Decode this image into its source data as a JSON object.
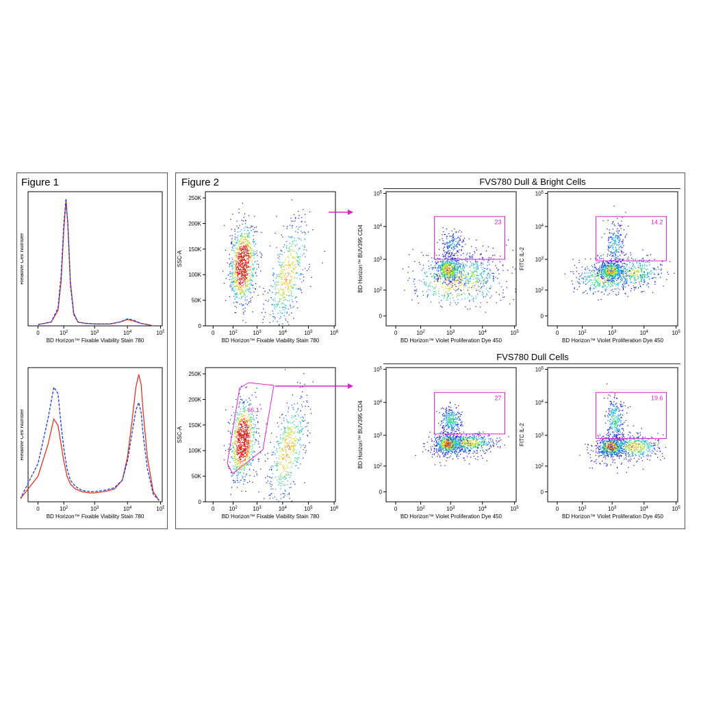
{
  "figure1": {
    "title": "Figure 1"
  },
  "figure2": {
    "title": "Figure 2",
    "group_top": "FVS780 Dull & Bright Cells",
    "group_bottom": "FVS780 Dull Cells"
  },
  "colors": {
    "solid": "#e8301a",
    "dashed": "#1d3ad8",
    "gate": "#e020d0",
    "arrow": "#e020d0"
  },
  "chart_data": [
    {
      "id": "hist_top",
      "type": "line",
      "xlabel": "BD Horizon™ Fixable Viability Stain 780",
      "ylabel": "Relative Cell Number",
      "x_ticks": [
        "0",
        "10^2",
        "10^3",
        "10^4",
        "10^5"
      ],
      "x_scale": "biexponential",
      "series": [
        {
          "style": "solid",
          "color": "#e8301a",
          "x": [
            0,
            30,
            60,
            80,
            100,
            120,
            140,
            170,
            220,
            300,
            500,
            1000,
            3000,
            6000,
            10000,
            15000,
            25000,
            40000,
            60000
          ],
          "y": [
            0.01,
            0.03,
            0.12,
            0.35,
            0.75,
            0.98,
            0.8,
            0.35,
            0.1,
            0.03,
            0.02,
            0.015,
            0.015,
            0.03,
            0.05,
            0.04,
            0.02,
            0.01,
            0.0
          ]
        },
        {
          "style": "dashed",
          "color": "#1d3ad8",
          "x": [
            0,
            30,
            60,
            80,
            100,
            120,
            140,
            170,
            220,
            300,
            500,
            1000,
            3000,
            6000,
            10000,
            15000,
            25000,
            40000,
            60000
          ],
          "y": [
            0.01,
            0.03,
            0.14,
            0.4,
            0.8,
            1.0,
            0.78,
            0.32,
            0.09,
            0.03,
            0.02,
            0.015,
            0.015,
            0.03,
            0.055,
            0.045,
            0.02,
            0.01,
            0.0
          ]
        }
      ]
    },
    {
      "id": "hist_bottom",
      "type": "line",
      "xlabel": "BD Horizon™ Fixable Viability Stain 780",
      "ylabel": "Relative Cell Number",
      "x_ticks": [
        "0",
        "10^2",
        "10^3",
        "10^4",
        "10^5"
      ],
      "x_scale": "biexponential",
      "series": [
        {
          "style": "solid",
          "color": "#e8301a",
          "x": [
            -50,
            0,
            20,
            40,
            60,
            80,
            100,
            130,
            170,
            250,
            400,
            700,
            1000,
            2000,
            4000,
            7000,
            10000,
            14000,
            18000,
            22000,
            26000,
            30000,
            40000,
            60000,
            90000
          ],
          "y": [
            0.02,
            0.2,
            0.45,
            0.65,
            0.6,
            0.45,
            0.32,
            0.2,
            0.14,
            0.1,
            0.08,
            0.07,
            0.07,
            0.08,
            0.1,
            0.17,
            0.35,
            0.65,
            0.9,
            1.0,
            0.92,
            0.7,
            0.35,
            0.08,
            0.01
          ]
        },
        {
          "style": "dashed",
          "color": "#1d3ad8",
          "x": [
            -50,
            0,
            20,
            40,
            60,
            80,
            100,
            130,
            170,
            250,
            400,
            700,
            1000,
            2000,
            4000,
            7000,
            10000,
            14000,
            18000,
            22000,
            26000,
            30000,
            40000,
            60000,
            90000
          ],
          "y": [
            0.02,
            0.3,
            0.65,
            0.9,
            0.85,
            0.6,
            0.42,
            0.26,
            0.17,
            0.12,
            0.09,
            0.08,
            0.08,
            0.09,
            0.11,
            0.17,
            0.32,
            0.55,
            0.72,
            0.78,
            0.7,
            0.52,
            0.26,
            0.06,
            0.01
          ]
        }
      ]
    },
    {
      "id": "ssc_top",
      "type": "scatter",
      "xlabel": "BD Horizon™ Fixable Viability Stain 780",
      "ylabel": "SSC-A",
      "x_ticks": [
        "0",
        "10^2",
        "10^3",
        "10^4",
        "10^5",
        "10^6"
      ],
      "y_ticks": [
        "0",
        "50K",
        "100K",
        "150K",
        "200K",
        "250K"
      ],
      "ylim": [
        0,
        262144
      ],
      "populations": [
        {
          "cx": 250,
          "cy": 120000,
          "sx": 0.28,
          "sy": 38000,
          "tilt": 0.25,
          "weight": 0.65
        },
        {
          "cx": 15000,
          "cy": 100000,
          "sx": 0.4,
          "sy": 45000,
          "tilt": 1.0,
          "weight": 0.35
        }
      ],
      "gates": []
    },
    {
      "id": "cd4_top",
      "type": "scatter",
      "xlabel": "BD Horizon™ Violet Proliferation Dye 450",
      "ylabel": "BD Horizon™ BUV395 CD4",
      "x_ticks": [
        "0",
        "10^2",
        "10^3",
        "10^4",
        "10^5"
      ],
      "y_ticks": [
        "0",
        "10^2",
        "10^3",
        "10^4",
        "10^5"
      ],
      "populations": [
        {
          "cx": 800,
          "cy": 500,
          "sx": 0.2,
          "sy": 0.2,
          "tilt": 0,
          "weight": 0.35
        },
        {
          "cx": 1100,
          "cy": 3000,
          "sx": 0.2,
          "sy": 0.2,
          "tilt": 0,
          "weight": 0.12
        },
        {
          "cx": 4000,
          "cy": 400,
          "sx": 0.45,
          "sy": 0.3,
          "tilt": 0,
          "weight": 0.2
        },
        {
          "cx": 1500,
          "cy": 200,
          "sx": 0.8,
          "sy": 0.5,
          "tilt": 0,
          "weight": 0.33
        }
      ],
      "gates": [
        {
          "label": "23",
          "x": [
            300,
            50000
          ],
          "y": [
            1000,
            20000
          ]
        }
      ]
    },
    {
      "id": "il2_top",
      "type": "scatter",
      "xlabel": "BD Horizon™ Violet Proliferation Dye 450",
      "ylabel": "FITC IL-2",
      "x_ticks": [
        "0",
        "10^2",
        "10^3",
        "10^4",
        "10^5"
      ],
      "y_ticks": [
        "0",
        "10^2",
        "10^3",
        "10^4",
        "10^5"
      ],
      "populations": [
        {
          "cx": 900,
          "cy": 450,
          "sx": 0.2,
          "sy": 0.15,
          "tilt": 0,
          "weight": 0.35
        },
        {
          "cx": 1200,
          "cy": 3000,
          "sx": 0.15,
          "sy": 0.35,
          "tilt": 0,
          "weight": 0.15
        },
        {
          "cx": 5000,
          "cy": 400,
          "sx": 0.45,
          "sy": 0.25,
          "tilt": 0,
          "weight": 0.25
        },
        {
          "cx": 500,
          "cy": 250,
          "sx": 0.5,
          "sy": 0.3,
          "tilt": 0,
          "weight": 0.25
        }
      ],
      "gates": [
        {
          "label": "14.2",
          "x": [
            300,
            50000
          ],
          "y": [
            900,
            20000
          ]
        }
      ]
    },
    {
      "id": "ssc_bottom",
      "type": "scatter",
      "xlabel": "BD Horizon™ Fixable Viability Stain 780",
      "ylabel": "SSC-A",
      "x_ticks": [
        "0",
        "10^2",
        "10^3",
        "10^4",
        "10^5",
        "10^6"
      ],
      "y_ticks": [
        "0",
        "50K",
        "100K",
        "150K",
        "200K",
        "250K"
      ],
      "ylim": [
        0,
        262144
      ],
      "populations": [
        {
          "cx": 250,
          "cy": 120000,
          "sx": 0.28,
          "sy": 38000,
          "tilt": 0.25,
          "weight": 0.65
        },
        {
          "cx": 15000,
          "cy": 100000,
          "sx": 0.4,
          "sy": 45000,
          "tilt": 1.0,
          "weight": 0.35
        }
      ],
      "gates": [
        {
          "label": "66.1",
          "polygon": true
        }
      ]
    },
    {
      "id": "cd4_bottom",
      "type": "scatter",
      "xlabel": "BD Horizon™ Violet Proliferation Dye 450",
      "ylabel": "BD Horizon™ BUV395 CD4",
      "x_ticks": [
        "0",
        "10^2",
        "10^3",
        "10^4",
        "10^5"
      ],
      "y_ticks": [
        "0",
        "10^2",
        "10^3",
        "10^4",
        "10^5"
      ],
      "populations": [
        {
          "cx": 800,
          "cy": 550,
          "sx": 0.2,
          "sy": 0.15,
          "tilt": 0,
          "weight": 0.4
        },
        {
          "cx": 1000,
          "cy": 3000,
          "sx": 0.18,
          "sy": 0.2,
          "tilt": 0,
          "weight": 0.2
        },
        {
          "cx": 4000,
          "cy": 600,
          "sx": 0.4,
          "sy": 0.15,
          "tilt": 0,
          "weight": 0.3
        },
        {
          "cx": 1200,
          "cy": 400,
          "sx": 0.5,
          "sy": 0.25,
          "tilt": 0,
          "weight": 0.1
        }
      ],
      "gates": [
        {
          "label": "27",
          "x": [
            300,
            50000
          ],
          "y": [
            1100,
            20000
          ]
        }
      ]
    },
    {
      "id": "il2_bottom",
      "type": "scatter",
      "xlabel": "BD Horizon™ Violet Proliferation Dye 450",
      "ylabel": "FITC IL-2",
      "x_ticks": [
        "0",
        "10^2",
        "10^3",
        "10^4",
        "10^5"
      ],
      "y_ticks": [
        "0",
        "10^2",
        "10^3",
        "10^4",
        "10^5"
      ],
      "populations": [
        {
          "cx": 900,
          "cy": 450,
          "sx": 0.2,
          "sy": 0.15,
          "tilt": 0,
          "weight": 0.4
        },
        {
          "cx": 1200,
          "cy": 3000,
          "sx": 0.15,
          "sy": 0.35,
          "tilt": 0,
          "weight": 0.2
        },
        {
          "cx": 5000,
          "cy": 450,
          "sx": 0.4,
          "sy": 0.2,
          "tilt": 0,
          "weight": 0.3
        },
        {
          "cx": 700,
          "cy": 300,
          "sx": 0.4,
          "sy": 0.25,
          "tilt": 0,
          "weight": 0.1
        }
      ],
      "gates": [
        {
          "label": "19.6",
          "x": [
            300,
            50000
          ],
          "y": [
            800,
            20000
          ]
        }
      ]
    }
  ]
}
